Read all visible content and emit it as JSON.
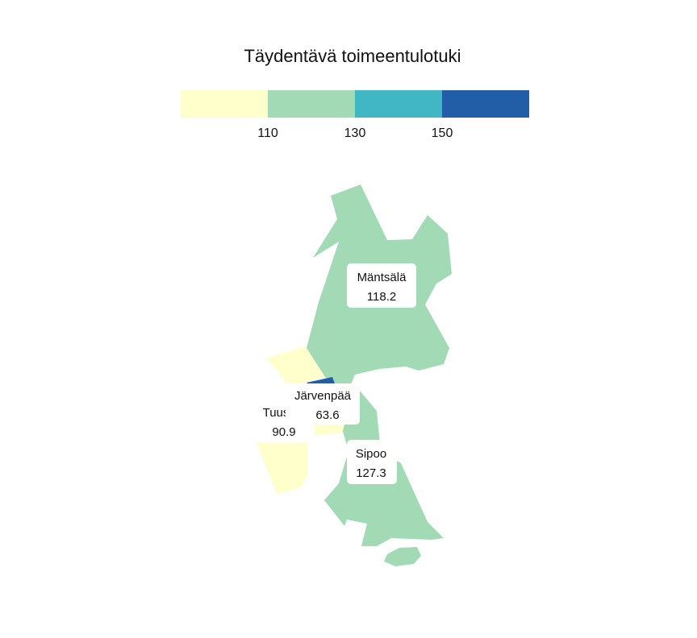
{
  "title": "Täydentävä toimeentulotuki",
  "legend": {
    "bins": [
      {
        "color": "#ffffcc",
        "from": null,
        "to": 110
      },
      {
        "color": "#a1dab4",
        "from": 110,
        "to": 130
      },
      {
        "color": "#41b6c4",
        "from": 130,
        "to": 150
      },
      {
        "color": "#225ea8",
        "from": 150,
        "to": null
      }
    ],
    "ticks": [
      "110",
      "130",
      "150"
    ]
  },
  "regions": [
    {
      "id": "mantsala",
      "name": "Mäntsälä",
      "value_label": "118.2",
      "value": 118.2,
      "color": "#a1dab4"
    },
    {
      "id": "jarvenpaa",
      "name": "Järvenpää",
      "value_label": "63.6",
      "value": 63.6,
      "color": "#ffffcc"
    },
    {
      "id": "tuusula",
      "name": "Tuusula",
      "value_label": "90.9",
      "value": 90.9,
      "color": "#ffffcc"
    },
    {
      "id": "sipoo",
      "name": "Sipoo",
      "value_label": "127.3",
      "value": 127.3,
      "color": "#a1dab4"
    },
    {
      "id": "kerava",
      "name": "",
      "value_label": "",
      "color": "#225ea8"
    }
  ]
}
